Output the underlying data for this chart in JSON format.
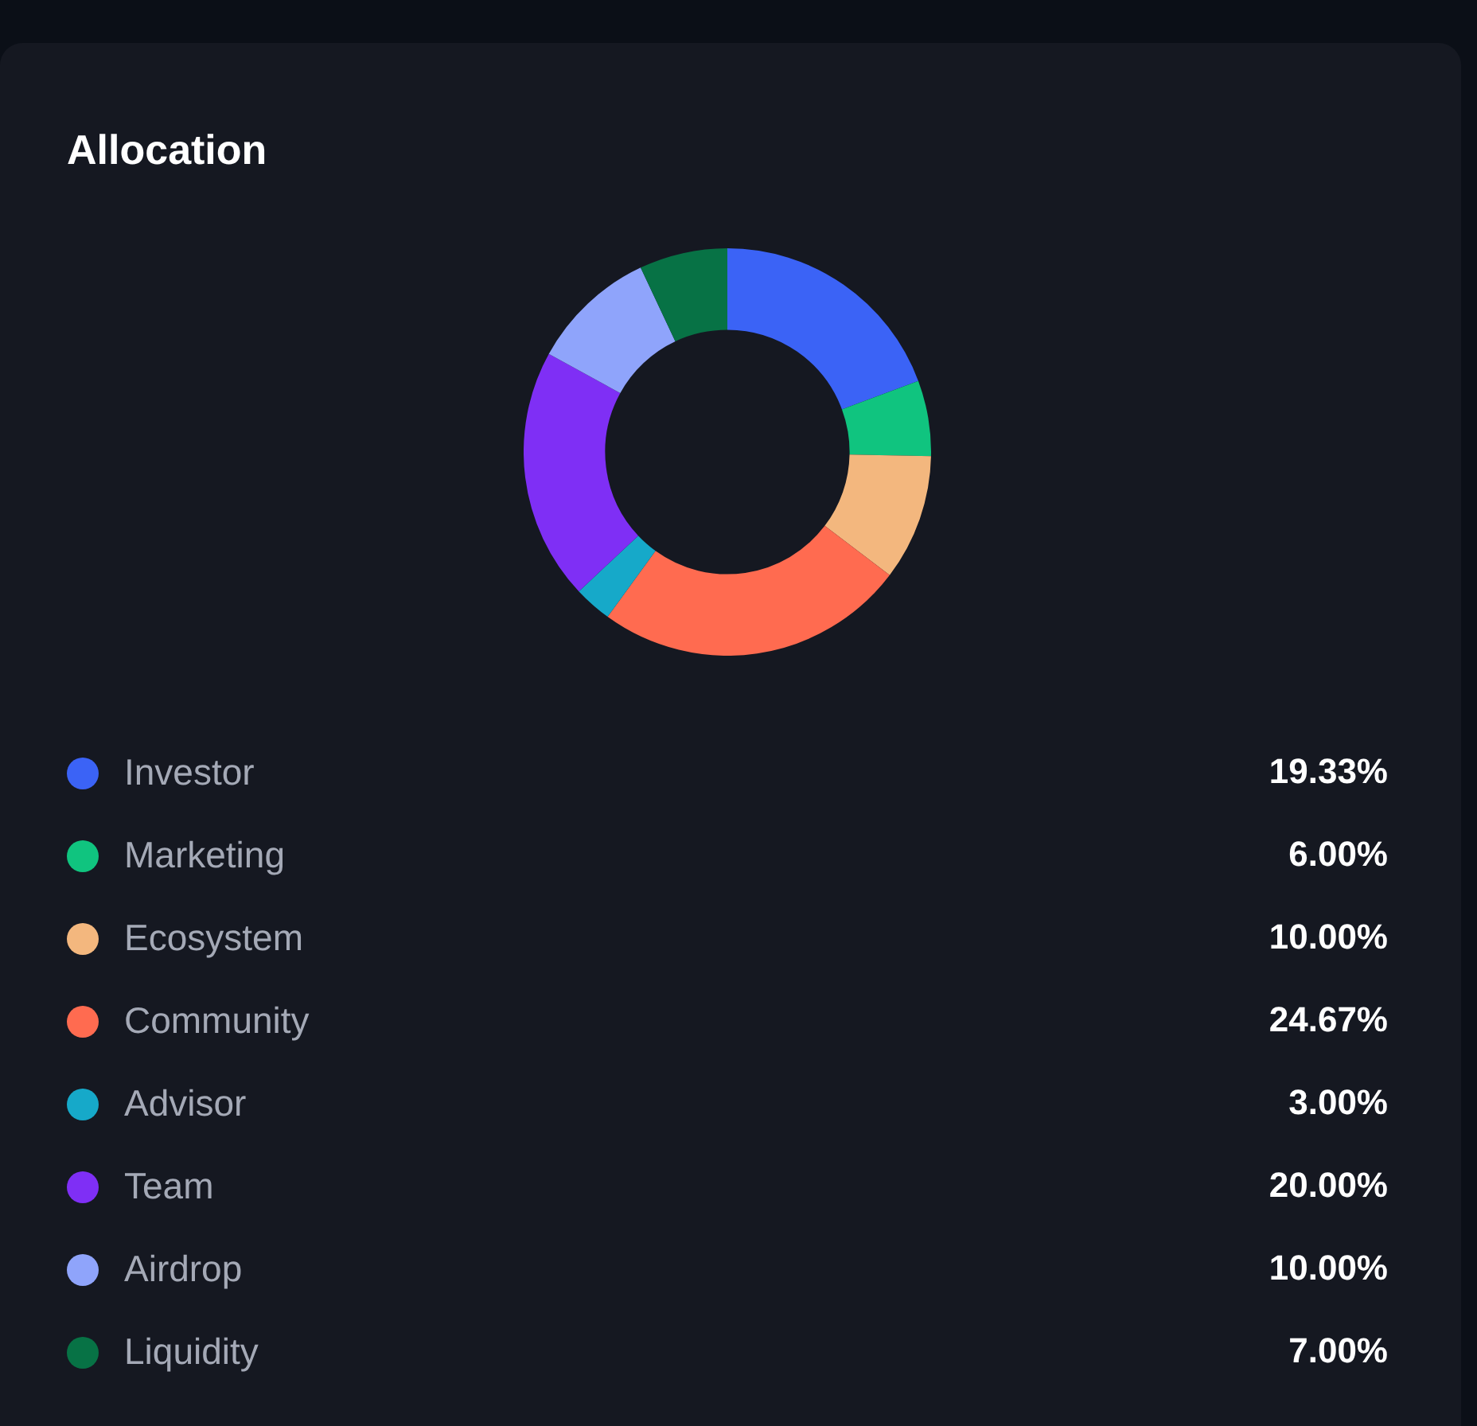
{
  "chart_data": {
    "type": "donut",
    "title": "Allocation",
    "categories": [
      "Investor",
      "Marketing",
      "Ecosystem",
      "Community",
      "Advisor",
      "Team",
      "Airdrop",
      "Liquidity"
    ],
    "values": [
      19.33,
      6,
      10,
      24.67,
      3,
      20,
      10,
      7
    ],
    "colors": [
      "#3b63f6",
      "#10c47f",
      "#f3b77e",
      "#ff6b50",
      "#16a9c9",
      "#7f2ff5",
      "#8fa4fb",
      "#077245"
    ],
    "value_labels": [
      "19.33%",
      "6.00%",
      "10.00%",
      "24.67%",
      "3.00%",
      "20.00%",
      "10.00%",
      "7.00%"
    ],
    "legend": "bottom"
  }
}
